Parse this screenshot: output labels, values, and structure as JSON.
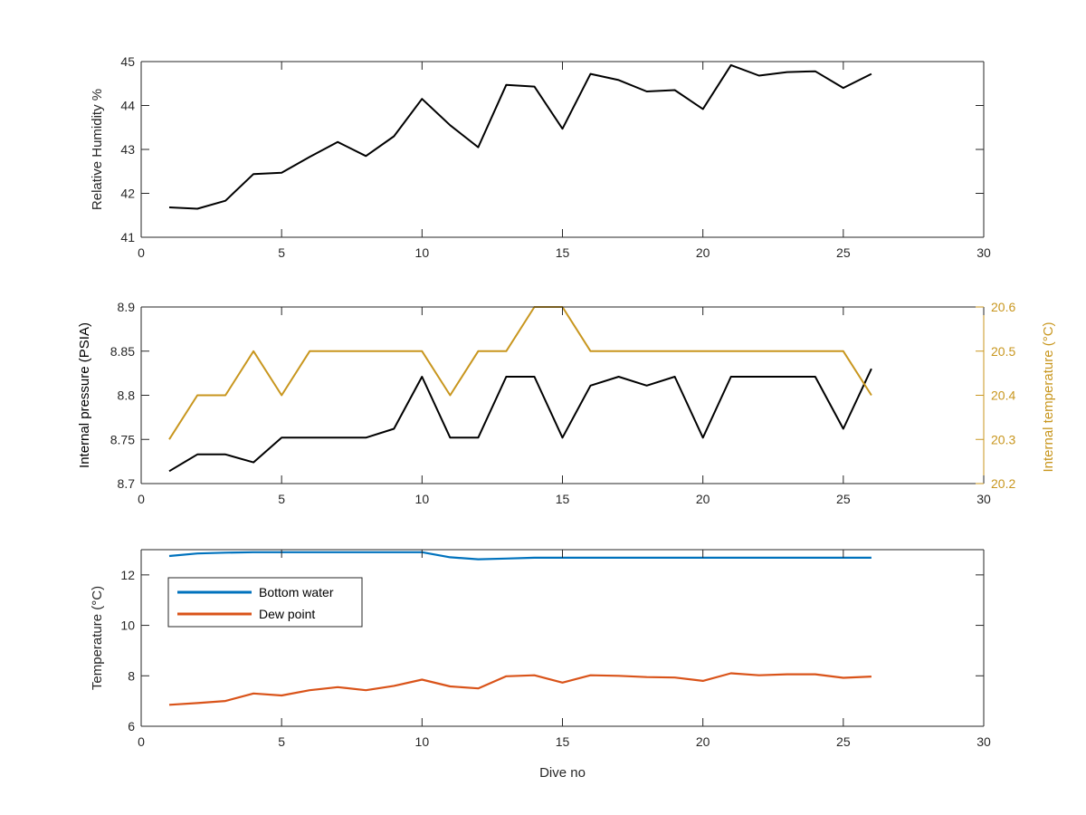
{
  "chart_data": [
    {
      "type": "line",
      "x": [
        1,
        2,
        3,
        4,
        5,
        6,
        7,
        8,
        9,
        10,
        11,
        12,
        13,
        14,
        15,
        16,
        17,
        18,
        19,
        20,
        21,
        22,
        23,
        24,
        25,
        26
      ],
      "xlim": [
        0,
        30
      ],
      "x_ticks": [
        0,
        5,
        10,
        15,
        20,
        25,
        30
      ],
      "xlabel": "",
      "ylabel": "Relative Humidity %",
      "ylim": [
        41,
        45
      ],
      "y_ticks": [
        41,
        42,
        43,
        44,
        45
      ],
      "grid": false,
      "series": [
        {
          "color": "#000000",
          "values": [
            41.68,
            41.65,
            41.83,
            42.44,
            42.47,
            42.83,
            43.17,
            42.85,
            43.3,
            44.15,
            43.55,
            43.05,
            44.47,
            44.43,
            43.47,
            44.72,
            44.58,
            44.32,
            44.35,
            43.92,
            44.92,
            44.68,
            44.76,
            44.78,
            44.4,
            44.72
          ]
        }
      ]
    },
    {
      "type": "line",
      "x": [
        1,
        2,
        3,
        4,
        5,
        6,
        7,
        8,
        9,
        10,
        11,
        12,
        13,
        14,
        15,
        16,
        17,
        18,
        19,
        20,
        21,
        22,
        23,
        24,
        25,
        26
      ],
      "xlim": [
        0,
        30
      ],
      "x_ticks": [
        0,
        5,
        10,
        15,
        20,
        25,
        30
      ],
      "xlabel": "",
      "ylabel": "Internal pressure (PSIA)",
      "ylim": [
        8.7,
        8.9
      ],
      "y_ticks": [
        8.7,
        8.75,
        8.8,
        8.85,
        8.9
      ],
      "y_tick_labels": [
        "8.7",
        "8.75",
        "8.8",
        "8.85",
        "8.9"
      ],
      "y2label": "Internal temperature (°C)",
      "y2lim": [
        20.2,
        20.6
      ],
      "y2_ticks": [
        20.2,
        20.3,
        20.4,
        20.5,
        20.6
      ],
      "y2_tick_labels": [
        "20.2",
        "20.3",
        "20.4",
        "20.5",
        "20.6"
      ],
      "axis2_color": "#C8961E",
      "grid": false,
      "series": [
        {
          "axis": "left",
          "color": "#000000",
          "values": [
            8.714,
            8.733,
            8.733,
            8.724,
            8.752,
            8.752,
            8.752,
            8.752,
            8.762,
            8.821,
            8.752,
            8.752,
            8.821,
            8.821,
            8.752,
            8.811,
            8.821,
            8.811,
            8.821,
            8.752,
            8.821,
            8.821,
            8.821,
            8.821,
            8.762,
            8.83
          ]
        },
        {
          "axis": "right",
          "color": "#C8961E",
          "values": [
            20.3,
            20.4,
            20.4,
            20.5,
            20.4,
            20.5,
            20.5,
            20.5,
            20.5,
            20.5,
            20.4,
            20.5,
            20.5,
            20.6,
            20.6,
            20.5,
            20.5,
            20.5,
            20.5,
            20.5,
            20.5,
            20.5,
            20.5,
            20.5,
            20.5,
            20.4
          ]
        }
      ]
    },
    {
      "type": "line",
      "x": [
        1,
        2,
        3,
        4,
        5,
        6,
        7,
        8,
        9,
        10,
        11,
        12,
        13,
        14,
        15,
        16,
        17,
        18,
        19,
        20,
        21,
        22,
        23,
        24,
        25,
        26
      ],
      "xlim": [
        0,
        30
      ],
      "x_ticks": [
        0,
        5,
        10,
        15,
        20,
        25,
        30
      ],
      "xlabel": "Dive no",
      "ylabel": "Temperature (°C)",
      "ylim": [
        6,
        13
      ],
      "y_ticks": [
        6,
        8,
        10,
        12
      ],
      "grid": false,
      "legend_position": "top-left",
      "series": [
        {
          "name": "Bottom water",
          "color": "#0072BD",
          "values": [
            12.75,
            12.85,
            12.88,
            12.9,
            12.9,
            12.9,
            12.9,
            12.9,
            12.9,
            12.9,
            12.7,
            12.62,
            12.65,
            12.68,
            12.68,
            12.68,
            12.68,
            12.68,
            12.68,
            12.68,
            12.68,
            12.68,
            12.68,
            12.68,
            12.68,
            12.68
          ]
        },
        {
          "name": "Dew point",
          "color": "#D95319",
          "values": [
            6.85,
            6.92,
            7.0,
            7.3,
            7.22,
            7.43,
            7.55,
            7.43,
            7.6,
            7.85,
            7.58,
            7.5,
            7.98,
            8.02,
            7.73,
            8.02,
            8.0,
            7.95,
            7.93,
            7.8,
            8.1,
            8.02,
            8.06,
            8.06,
            7.92,
            7.97
          ]
        }
      ]
    }
  ]
}
